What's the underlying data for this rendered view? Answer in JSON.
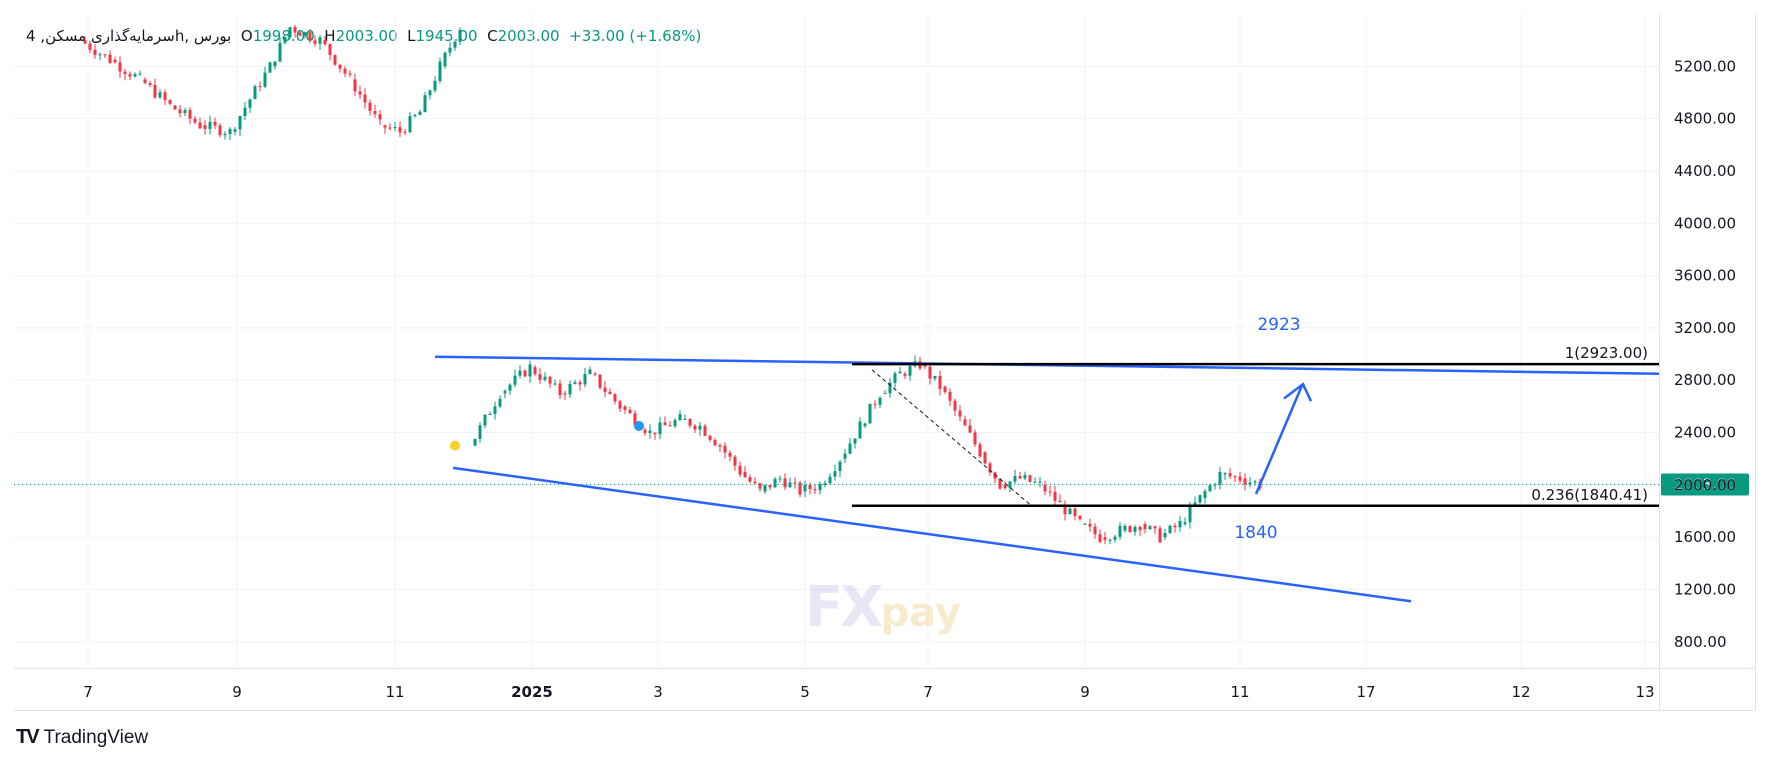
{
  "legend": {
    "symbol": "سرمایه‌گذاری مسکن, 4h, بورس",
    "open_label": "O",
    "open": "1998.00",
    "high_label": "H",
    "high": "2003.00",
    "low_label": "L",
    "low": "1945.00",
    "close_label": "C",
    "close": "2003.00",
    "change": "+33.00 (+1.68%)"
  },
  "brand": {
    "logo": "TV",
    "name": "TradingView"
  },
  "watermark": {
    "main": "FX",
    "sub": "pay"
  },
  "colors": {
    "up": "#089981",
    "down": "#f23645",
    "trend": "#2962ff",
    "level": "#000000",
    "last_price": "#089981"
  },
  "chart_data": {
    "type": "candlestick",
    "ylim": [
      600,
      5600
    ],
    "y_ticks": [
      "5200.00",
      "4800.00",
      "4400.00",
      "4000.00",
      "3600.00",
      "3200.00",
      "2800.00",
      "2400.00",
      "2000.00",
      "1600.00",
      "1200.00",
      "800.00"
    ],
    "x_tick_labels": [
      "7",
      "9",
      "11",
      "2025",
      "3",
      "5",
      "7",
      "9",
      "11",
      "17",
      "12",
      "13"
    ],
    "last_price": "2003.00",
    "fib_levels": [
      {
        "label": "1(2923.00)",
        "value": 2923
      },
      {
        "label": "0.236(1840.41)",
        "value": 1840.41
      }
    ],
    "annotations": [
      {
        "text": "2923",
        "value": 2923
      },
      {
        "text": "1840",
        "value": 1840
      }
    ],
    "trend_lines": [
      {
        "from": [
          0,
          2980
        ],
        "to": [
          1,
          2850
        ]
      },
      {
        "from": [
          0,
          2130
        ],
        "to": [
          1,
          1110
        ]
      }
    ],
    "price_path": [
      [
        0.0,
        5400
      ],
      [
        0.03,
        5250
      ],
      [
        0.06,
        5100
      ],
      [
        0.09,
        4900
      ],
      [
        0.12,
        4750
      ],
      [
        0.15,
        4700
      ],
      [
        0.17,
        4950
      ],
      [
        0.19,
        5200
      ],
      [
        0.21,
        5500
      ],
      [
        0.24,
        5400
      ],
      [
        0.27,
        5100
      ],
      [
        0.3,
        4750
      ],
      [
        0.32,
        4700
      ],
      [
        0.34,
        4850
      ],
      [
        0.36,
        5200
      ],
      [
        0.38,
        5500
      ],
      [
        0.39,
        2300
      ],
      [
        0.42,
        2700
      ],
      [
        0.45,
        2900
      ],
      [
        0.48,
        2700
      ],
      [
        0.51,
        2850
      ],
      [
        0.54,
        2600
      ],
      [
        0.57,
        2400
      ],
      [
        0.6,
        2500
      ],
      [
        0.62,
        2450
      ],
      [
        0.64,
        2300
      ],
      [
        0.66,
        2100
      ],
      [
        0.68,
        1950
      ],
      [
        0.7,
        2050
      ],
      [
        0.72,
        1950
      ],
      [
        0.74,
        2000
      ],
      [
        0.76,
        2200
      ],
      [
        0.78,
        2450
      ],
      [
        0.8,
        2700
      ],
      [
        0.82,
        2850
      ],
      [
        0.84,
        2920
      ],
      [
        0.86,
        2750
      ],
      [
        0.88,
        2500
      ],
      [
        0.9,
        2250
      ],
      [
        0.92,
        2000
      ],
      [
        0.94,
        2050
      ],
      [
        0.96,
        2000
      ],
      [
        0.98,
        1850
      ],
      [
        1.0,
        1700
      ],
      [
        1.02,
        1600
      ],
      [
        1.04,
        1650
      ],
      [
        1.06,
        1700
      ],
      [
        1.08,
        1600
      ],
      [
        1.1,
        1700
      ],
      [
        1.12,
        1900
      ],
      [
        1.14,
        2080
      ],
      [
        1.16,
        2050
      ],
      [
        1.18,
        2003
      ]
    ]
  }
}
